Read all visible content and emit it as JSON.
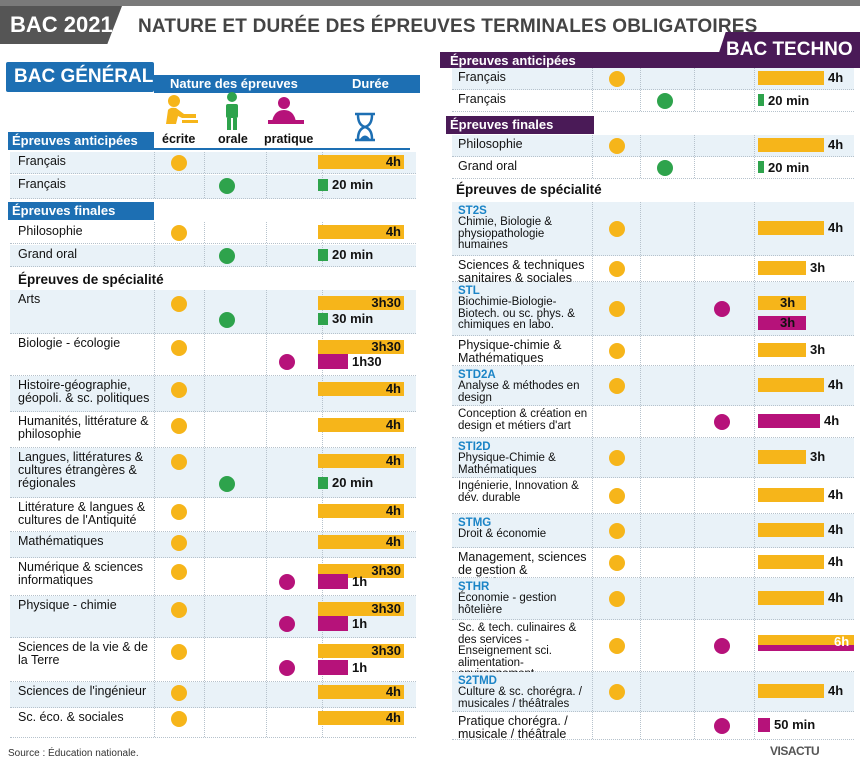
{
  "header": {
    "badge": "BAC 2021",
    "title": "NATURE ET DURÉE DES ÉPREUVES TERMINALES OBLIGATOIRES"
  },
  "general": {
    "banner": "BAC GÉNÉRAL",
    "col_nature": "Nature des épreuves",
    "col_duree": "Durée",
    "icon_ecrite": "écrite",
    "icon_orale": "orale",
    "icon_pratique": "pratique",
    "sec_anticipees": "Épreuves anticipées",
    "sec_finales": "Épreuves finales",
    "sec_specialite": "Épreuves de spécialité",
    "rows": [
      {
        "label": "Français",
        "type": "ecrite",
        "dur": "4h"
      },
      {
        "label": "Français",
        "type": "orale",
        "dur": "20 min"
      },
      {
        "label": "Philosophie",
        "type": "ecrite",
        "dur": "4h"
      },
      {
        "label": "Grand oral",
        "type": "orale",
        "dur": "20 min"
      },
      {
        "label": "Arts",
        "type": "ecrite+orale",
        "dur1": "3h30",
        "dur2": "30 min"
      },
      {
        "label": "Biologie - écologie",
        "type": "ecrite+pratique",
        "dur1": "3h30",
        "dur2": "1h30"
      },
      {
        "label": "Histoire-géographie, géopoli. & sc. politiques",
        "type": "ecrite",
        "dur": "4h"
      },
      {
        "label": "Humanités, littérature & philosophie",
        "type": "ecrite",
        "dur": "4h"
      },
      {
        "label": "Langues, littératures & cultures étrangères & régionales",
        "type": "ecrite+orale",
        "dur1": "4h",
        "dur2": "20 min"
      },
      {
        "label": "Littérature & langues & cultures de l'Antiquité",
        "type": "ecrite",
        "dur": "4h"
      },
      {
        "label": "Mathématiques",
        "type": "ecrite",
        "dur": "4h"
      },
      {
        "label": "Numérique & sciences informatiques",
        "type": "ecrite+pratique",
        "dur1": "3h30",
        "dur2": "1h"
      },
      {
        "label": "Physique - chimie",
        "type": "ecrite+pratique",
        "dur1": "3h30",
        "dur2": "1h"
      },
      {
        "label": "Sciences de la vie & de la Terre",
        "type": "ecrite+pratique",
        "dur1": "3h30",
        "dur2": "1h"
      },
      {
        "label": "Sciences de l'ingénieur",
        "type": "ecrite",
        "dur": "4h"
      },
      {
        "label": "Sc. éco. & sociales",
        "type": "ecrite",
        "dur": "4h"
      }
    ]
  },
  "techno": {
    "banner": "BAC TECHNO",
    "sec_anticipees": "Épreuves anticipées",
    "sec_finales": "Épreuves finales",
    "sec_specialite": "Épreuves de spécialité",
    "rows": [
      {
        "label": "Français",
        "dur": "4h"
      },
      {
        "label": "Français",
        "dur": "20 min"
      },
      {
        "label": "Philosophie",
        "dur": "4h"
      },
      {
        "label": "Grand oral",
        "dur": "20 min"
      },
      {
        "tag": "ST2S",
        "label": "Chimie, Biologie & physiopathologie humaines",
        "dur": "4h"
      },
      {
        "label": "Sciences & techniques sanitaires & sociales",
        "dur": "3h"
      },
      {
        "tag": "STL",
        "label": "Biochimie-Biologie-Biotech. ou sc. phys. & chimiques en labo.",
        "dur1": "3h",
        "dur2": "3h"
      },
      {
        "label": "Physique-chimie & Mathématiques",
        "dur": "3h"
      },
      {
        "tag": "STD2A",
        "label": "Analyse & méthodes en design",
        "dur": "4h"
      },
      {
        "label": "Conception & création en design et métiers d'art",
        "dur": "4h"
      },
      {
        "tag": "STI2D",
        "label": "Physique-Chimie & Mathématiques",
        "dur": "3h"
      },
      {
        "label": "Ingénierie, Innovation & dév. durable",
        "dur": "4h"
      },
      {
        "tag": "STMG",
        "label": "Droit & économie",
        "dur": "4h"
      },
      {
        "label": "Management, sciences de gestion & numérique",
        "dur": "4h"
      },
      {
        "tag": "STHR",
        "label": "Économie - gestion hôtelière",
        "dur": "4h"
      },
      {
        "label": "Sc. & tech. culinaires & des services - Enseignement sci. alimentation-environnement",
        "dur": "6h"
      },
      {
        "tag": "S2TMD",
        "label": "Culture & sc. chorégra. / musicales / théâtrales",
        "dur": "4h"
      },
      {
        "label": "Pratique chorégra. / musicale / théâtrale",
        "dur": "50 min"
      }
    ]
  },
  "footer": {
    "source": "Source : Éducation nationale.",
    "logo": "VISACTU"
  },
  "colors": {
    "ecrite": "#f6b51a",
    "orale": "#2ea34c",
    "pratique": "#b6127a",
    "general": "#1d6fb3",
    "techno": "#4a1a57"
  }
}
